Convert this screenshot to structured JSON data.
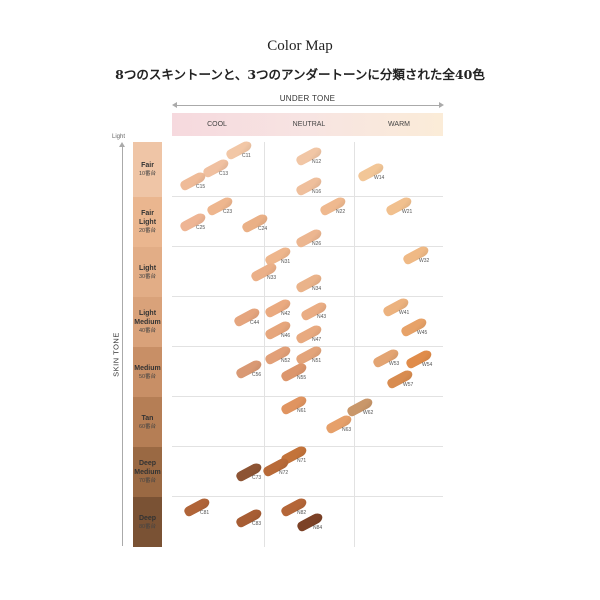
{
  "title": "Color Map",
  "subtitle": "8つのスキントーンと、3つのアンダートーンに分類された全40色",
  "under_tone": {
    "label": "UNDER TONE",
    "columns": [
      "COOL",
      "NEUTRAL",
      "WARM"
    ]
  },
  "skin_tone": {
    "label": "SKIN TONE",
    "top_label": "Light",
    "rows": [
      {
        "name": "Fair",
        "range": "10番台",
        "color": "#efc5a6"
      },
      {
        "name": "Fair Light",
        "range": "20番台",
        "color": "#eab68f"
      },
      {
        "name": "Light",
        "range": "30番台",
        "color": "#e2ad86"
      },
      {
        "name": "Light Medium",
        "range": "40番台",
        "color": "#d9a27a"
      },
      {
        "name": "Medium",
        "range": "50番台",
        "color": "#c88f66"
      },
      {
        "name": "Tan",
        "range": "60番台",
        "color": "#b57e55"
      },
      {
        "name": "Deep Medium",
        "range": "70番台",
        "color": "#9a6943"
      },
      {
        "name": "Deep",
        "range": "80番台",
        "color": "#7a5234"
      }
    ]
  },
  "shades": [
    {
      "code": "C11",
      "color": "#f2c7a6"
    },
    {
      "code": "C13",
      "color": "#f0c0a0"
    },
    {
      "code": "C15",
      "color": "#efbb98"
    },
    {
      "code": "N12",
      "color": "#f1c6a5"
    },
    {
      "code": "N16",
      "color": "#efbf9c"
    },
    {
      "code": "W14",
      "color": "#f2c697"
    },
    {
      "code": "C23",
      "color": "#eeb68e"
    },
    {
      "code": "C25",
      "color": "#eeb594"
    },
    {
      "code": "C24",
      "color": "#eab086"
    },
    {
      "code": "N22",
      "color": "#efb98f"
    },
    {
      "code": "N26",
      "color": "#ecb690"
    },
    {
      "code": "W21",
      "color": "#f1c08e"
    },
    {
      "code": "N31",
      "color": "#eeb68c"
    },
    {
      "code": "N33",
      "color": "#ebb088"
    },
    {
      "code": "N34",
      "color": "#eab38a"
    },
    {
      "code": "W32",
      "color": "#efb985"
    },
    {
      "code": "C44",
      "color": "#e5a57e"
    },
    {
      "code": "N42",
      "color": "#eaaa80"
    },
    {
      "code": "N43",
      "color": "#eaad84"
    },
    {
      "code": "N46",
      "color": "#e6a67c"
    },
    {
      "code": "N47",
      "color": "#e8aa80"
    },
    {
      "code": "W41",
      "color": "#ecb27e"
    },
    {
      "code": "W45",
      "color": "#e7a268"
    },
    {
      "code": "C56",
      "color": "#d99974"
    },
    {
      "code": "N52",
      "color": "#e2a078"
    },
    {
      "code": "N51",
      "color": "#e3a47a"
    },
    {
      "code": "N55",
      "color": "#dc966c"
    },
    {
      "code": "W53",
      "color": "#e3a472"
    },
    {
      "code": "W54",
      "color": "#e08c4a"
    },
    {
      "code": "W57",
      "color": "#d88c50"
    },
    {
      "code": "N61",
      "color": "#e09460"
    },
    {
      "code": "W62",
      "color": "#c9976a"
    },
    {
      "code": "N63",
      "color": "#e6a06a"
    },
    {
      "code": "N71",
      "color": "#c3733a"
    },
    {
      "code": "N72",
      "color": "#b86a38"
    },
    {
      "code": "C73",
      "color": "#8d5434"
    },
    {
      "code": "C81",
      "color": "#b06438"
    },
    {
      "code": "C83",
      "color": "#a75d34"
    },
    {
      "code": "N82",
      "color": "#b46638"
    },
    {
      "code": "N84",
      "color": "#7c4126"
    }
  ]
}
